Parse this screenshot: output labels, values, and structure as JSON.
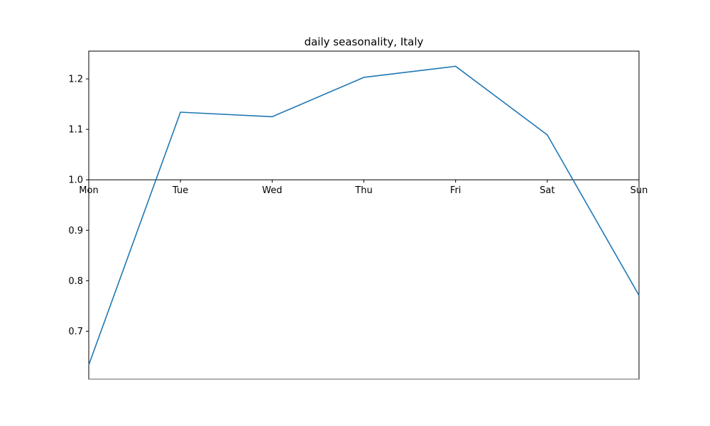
{
  "chart_data": {
    "type": "line",
    "title": "daily seasonality, Italy",
    "xlabel": "",
    "ylabel": "",
    "categories": [
      "Mon",
      "Tue",
      "Wed",
      "Thu",
      "Fri",
      "Sat",
      "Sun"
    ],
    "series": [
      {
        "values": [
          0.633,
          1.134,
          1.125,
          1.203,
          1.225,
          1.089,
          0.771
        ]
      }
    ],
    "ylim": [
      0.605,
      1.255
    ],
    "yticks": [
      "0.7",
      "0.8",
      "0.9",
      "1.0",
      "1.1",
      "1.2"
    ],
    "xaxis_position_y": 1.0,
    "grid": false,
    "legend": "none",
    "colors": {
      "line": "#1f77b4",
      "axis": "#000000",
      "bottom_spine": "#808080"
    }
  }
}
